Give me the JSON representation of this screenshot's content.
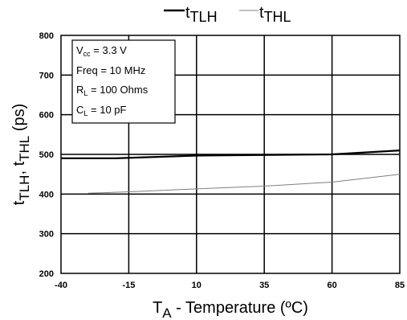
{
  "chart_data": {
    "type": "line",
    "xlabel": {
      "main": "T",
      "sub": "A",
      "rest": " - Temperature (ºC)"
    },
    "ylabel": {
      "p1": "t",
      "s1": "TLH",
      "p2": ", t",
      "s2": "THL",
      "p3": " (ps)"
    },
    "xlim": [
      -40,
      85
    ],
    "ylim": [
      200,
      800
    ],
    "xticks": [
      -40,
      -15,
      10,
      35,
      60,
      85
    ],
    "yticks": [
      200,
      300,
      400,
      500,
      600,
      700,
      800
    ],
    "grid": true,
    "legend_position": "top-center",
    "series": [
      {
        "key": "tlh",
        "name": {
          "base": "t",
          "sub": "TLH"
        },
        "color": "#000000",
        "weight": "thick",
        "x": [
          -40,
          -20,
          10,
          60,
          85
        ],
        "y": [
          490,
          490,
          497,
          500,
          510
        ]
      },
      {
        "key": "thl",
        "name": {
          "base": "t",
          "sub": "THL"
        },
        "color": "#7f7f7f",
        "weight": "thin",
        "x": [
          -30,
          -10,
          10,
          35,
          60,
          85
        ],
        "y": [
          402,
          407,
          413,
          420,
          430,
          450
        ]
      }
    ],
    "annotation_lines": [
      {
        "key": "vcc",
        "main": "V",
        "sub": "cc",
        "rest": " = 3.3 V"
      },
      {
        "key": "freq",
        "main": "Freq = 10 MHz",
        "sub": "",
        "rest": ""
      },
      {
        "key": "rl",
        "main": "R",
        "sub": "L",
        "rest": " = 100 Ohms"
      },
      {
        "key": "cl",
        "main": "C",
        "sub": "L",
        "rest": " = 10 pF"
      }
    ]
  }
}
